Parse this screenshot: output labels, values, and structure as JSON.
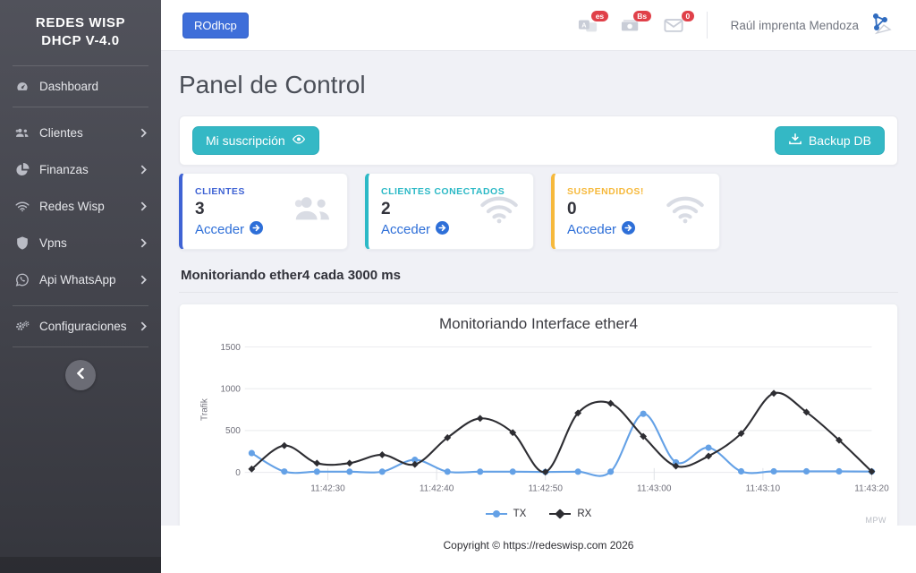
{
  "sidebar": {
    "title_line1": "REDES WISP",
    "title_line2": "DHCP V-4.0",
    "items": [
      {
        "label": "Dashboard",
        "icon": "tachometer"
      },
      {
        "label": "Clientes",
        "icon": "users"
      },
      {
        "label": "Finanzas",
        "icon": "pie-chart"
      },
      {
        "label": "Redes Wisp",
        "icon": "wifi"
      },
      {
        "label": "Vpns",
        "icon": "shield"
      },
      {
        "label": "Api WhatsApp",
        "icon": "whatsapp"
      },
      {
        "label": "Configuraciones",
        "icon": "gears"
      }
    ]
  },
  "header": {
    "brand_button": "ROdhcp",
    "badges": [
      {
        "icon": "language-icon",
        "badge": "es"
      },
      {
        "icon": "money-icon",
        "badge": "Bs"
      },
      {
        "icon": "envelope-icon",
        "badge": "0"
      }
    ],
    "user_name": "Raúl imprenta Mendoza"
  },
  "page": {
    "title": "Panel de Control"
  },
  "actions": {
    "subscription_label": "Mi suscripción",
    "backup_label": "Backup DB"
  },
  "stat_cards": [
    {
      "label": "CLIENTES",
      "value": "3",
      "link": "Acceder",
      "accent": "#3f63d4",
      "icon": "users"
    },
    {
      "label": "CLIENTES CONECTADOS",
      "value": "2",
      "link": "Acceder",
      "accent": "#2cb9c6",
      "icon": "wifi"
    },
    {
      "label": "SUSPENDIDOS!",
      "value": "0",
      "link": "Acceder",
      "accent": "#f6b93c",
      "icon": "wifi"
    }
  ],
  "monitor_heading": "Monitoriando ether4 cada 3000 ms",
  "chart_data": {
    "type": "line",
    "title": "Monitoriando Interface ether4",
    "ylabel": "Trafik",
    "ylim": [
      0,
      1500
    ],
    "y_ticks": [
      0,
      500,
      1000,
      1500
    ],
    "grid": true,
    "legend_position": "bottom",
    "x_seconds": [
      0,
      3,
      6,
      9,
      12,
      15,
      18,
      21,
      24,
      27,
      30,
      33,
      36,
      39,
      42,
      45,
      48,
      51,
      54,
      57
    ],
    "x_ticks": [
      {
        "t": 7,
        "label": "11:42:30"
      },
      {
        "t": 17,
        "label": "11:42:40"
      },
      {
        "t": 27,
        "label": "11:42:50"
      },
      {
        "t": 37,
        "label": "11:43:00"
      },
      {
        "t": 47,
        "label": "11:43:10"
      },
      {
        "t": 57,
        "label": "11:43:20"
      }
    ],
    "series": [
      {
        "name": "TX",
        "color": "#64a1e6",
        "marker": "circle",
        "values": [
          230,
          10,
          8,
          8,
          8,
          150,
          8,
          8,
          8,
          5,
          8,
          8,
          700,
          120,
          295,
          12,
          12,
          12,
          12,
          10
        ]
      },
      {
        "name": "RX",
        "color": "#2d2d32",
        "marker": "diamond",
        "values": [
          40,
          320,
          110,
          110,
          210,
          95,
          415,
          645,
          475,
          5,
          710,
          825,
          430,
          75,
          195,
          465,
          945,
          720,
          385,
          10
        ]
      }
    ]
  },
  "watermark": "MPW",
  "footer": "Copyright © https://redeswisp.com 2026"
}
